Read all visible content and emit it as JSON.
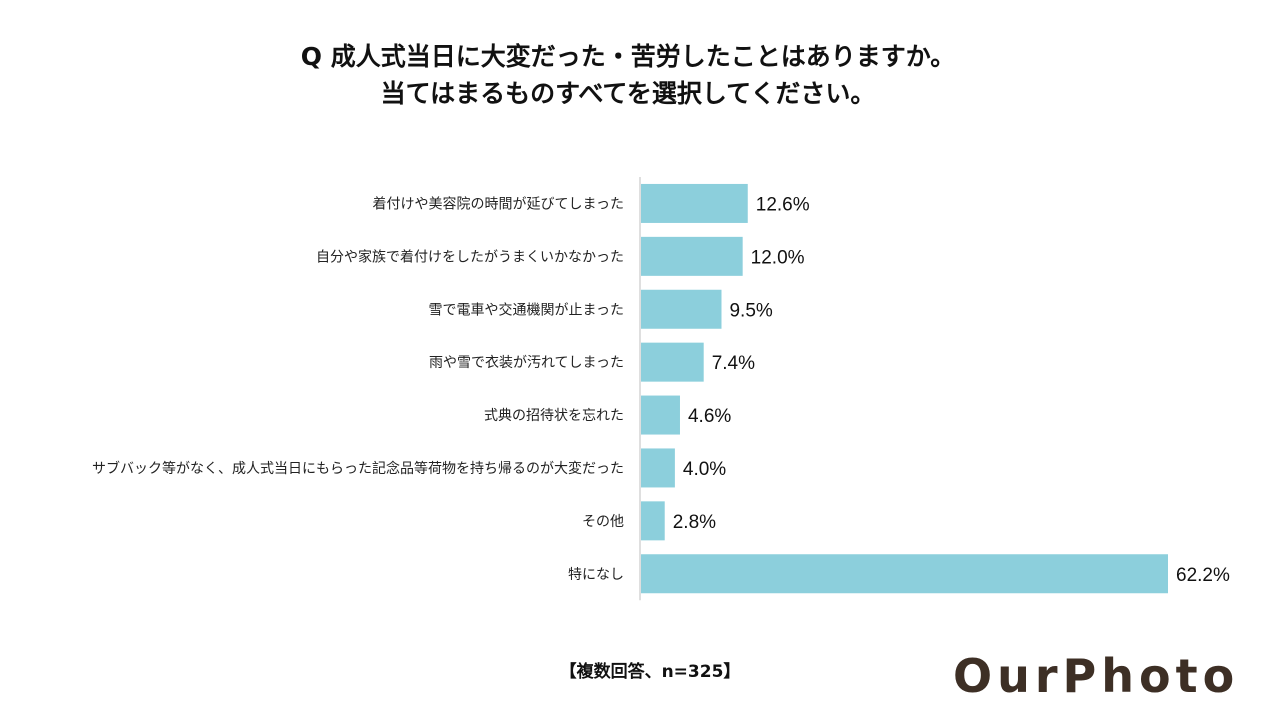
{
  "title_lines": [
    "Q 成人式当日に大変だった・苦労したことはありますか。",
    "当てはまるものすべてを選択してください。"
  ],
  "note": "【複数回答、n=325】",
  "logo": "OurPhoto",
  "colors": {
    "bar": "#8ccfdc",
    "axis": "#bfbfbf",
    "logo": "#3d2f25"
  },
  "chart_data": {
    "type": "bar",
    "orientation": "horizontal",
    "categories": [
      "着付けや美容院の時間が延びてしまった",
      "自分や家族で着付けをしたがうまくいかなかった",
      "雪で電車や交通機関が止まった",
      "雨や雪で衣装が汚れてしまった",
      "式典の招待状を忘れた",
      "サブバック等がなく、成人式当日にもらった記念品等荷物を持ち帰るのが大変だった",
      "その他",
      "特になし"
    ],
    "values": [
      12.6,
      12.0,
      9.5,
      7.4,
      4.6,
      4.0,
      2.8,
      62.2
    ],
    "value_labels": [
      "12.6%",
      "12.0%",
      "9.5%",
      "7.4%",
      "4.6%",
      "4.0%",
      "2.8%",
      "62.2%"
    ],
    "unit": "%",
    "grid": false
  }
}
